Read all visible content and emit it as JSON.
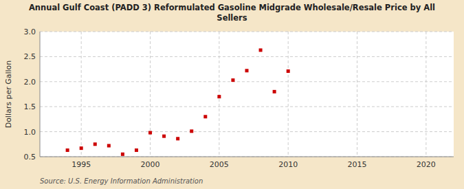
{
  "chart_data": {
    "type": "scatter",
    "title": "Annual Gulf Coast (PADD 3) Reformulated Gasoline Midgrade Wholesale/Resale Price by All\nSellers",
    "y_label": "Dollars per Gallon",
    "annotations": [
      "Source: U.S. Energy Information Administration"
    ],
    "x": [
      1994,
      1995,
      1996,
      1997,
      1998,
      1999,
      2000,
      2001,
      2002,
      2003,
      2004,
      2005,
      2006,
      2007,
      2008,
      2009,
      2010
    ],
    "values": [
      0.63,
      0.67,
      0.75,
      0.72,
      0.55,
      0.63,
      0.98,
      0.91,
      0.86,
      1.01,
      1.3,
      1.7,
      2.03,
      2.22,
      2.63,
      1.8,
      2.21
    ],
    "color": "#cc0000",
    "marker": "square",
    "xlim": [
      1992,
      2022
    ],
    "ylim": [
      0.5,
      3.0
    ],
    "xticks": [
      1995,
      2000,
      2005,
      2010,
      2015,
      2020
    ],
    "yticks": [
      0.5,
      {
        "value": 1.0,
        "label": "1.0"
      },
      1.5,
      {
        "value": 2.0,
        "label": "2.0"
      },
      2.5,
      {
        "value": 3.0,
        "label": "3.0"
      }
    ],
    "grid": true
  }
}
